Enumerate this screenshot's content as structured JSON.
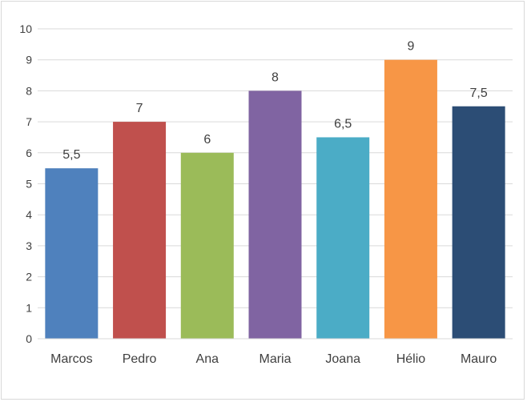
{
  "chart_data": {
    "type": "bar",
    "title": "",
    "xlabel": "",
    "ylabel": "",
    "categories": [
      "Marcos",
      "Pedro",
      "Ana",
      "Maria",
      "Joana",
      "Hélio",
      "Mauro"
    ],
    "values": [
      5.5,
      7,
      6,
      8,
      6.5,
      9,
      7.5
    ],
    "data_labels": [
      "5,5",
      "7",
      "6",
      "8",
      "6,5",
      "9",
      "7,5"
    ],
    "colors": [
      "#4f81bd",
      "#c0504d",
      "#9bbb59",
      "#8064a2",
      "#4bacc6",
      "#f79646",
      "#2c4d75"
    ],
    "ylim": [
      0,
      10
    ],
    "yticks": [
      0,
      1,
      2,
      3,
      4,
      5,
      6,
      7,
      8,
      9,
      10
    ],
    "ytick_labels": [
      "0",
      "1",
      "2",
      "3",
      "4",
      "5",
      "6",
      "7",
      "8",
      "9",
      "10"
    ],
    "grid": true,
    "legend": "none"
  }
}
